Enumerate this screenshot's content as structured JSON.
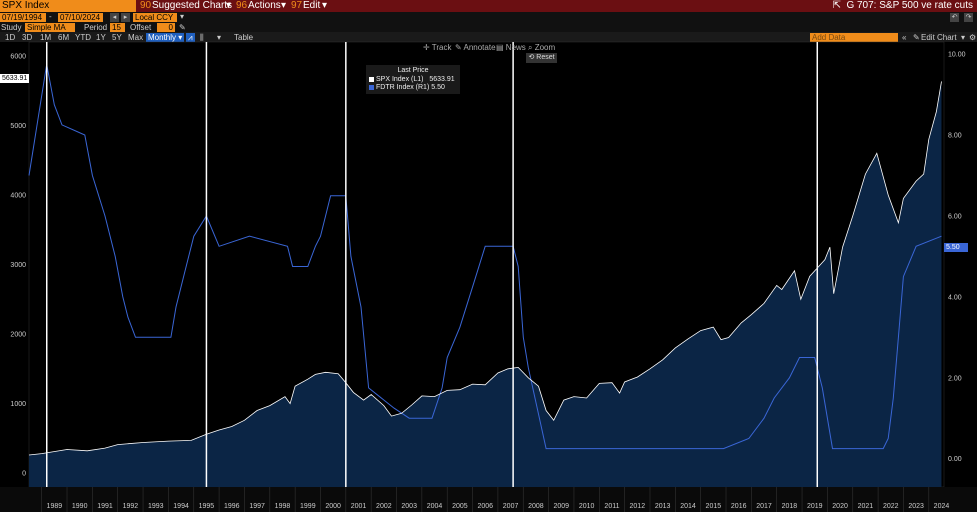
{
  "toolbar": {
    "security": "SPX Index",
    "suggested": "Suggested Charts",
    "suggested_num": "90",
    "actions": "Actions",
    "actions_num": "96",
    "edit": "Edit",
    "edit_num": "97",
    "chart_title": "G 707: S&P 500 ve rate cuts"
  },
  "range": {
    "start": "07/19/1994",
    "end": "07/10/2024",
    "currency": "Local CCY"
  },
  "study": {
    "label": "Study",
    "value": "Simple MA",
    "period_label": "Period",
    "period_value": "15",
    "offset_label": "Offset",
    "offset_value": "0"
  },
  "ranges": [
    "1D",
    "3D",
    "1M",
    "6M",
    "YTD",
    "1Y",
    "5Y",
    "Max"
  ],
  "frequency": "Monthly",
  "table_label": "Table",
  "add_data_placeholder": "Add Data",
  "edit_chart": "Edit Chart",
  "tools": {
    "track": "Track",
    "annotate": "Annotate",
    "news": "News",
    "zoom": "Zoom",
    "reset": "Reset"
  },
  "legend": {
    "header": "Last Price",
    "spx_label": "SPX Index  (L1)",
    "spx_value": "5633.91",
    "fdtr_label": "FDTR Index  (R1)",
    "fdtr_value": "5.50"
  },
  "last_tags": {
    "spx": "5633.91",
    "fdtr": "5.50"
  },
  "colors": {
    "spx_line": "#ffffff",
    "spx_fill": "#0b2545",
    "fdtr_line": "#3a66d6",
    "orange": "#f08c1a",
    "bar": "#6b0f12"
  },
  "chart_data": {
    "type": "area",
    "title": "",
    "x_unit": "year",
    "xlim": [
      1988.5,
      2024.6
    ],
    "ylim_left": [
      -200,
      6200
    ],
    "ylim_right": [
      -0.7,
      10.3
    ],
    "y_ticks_left": [
      0,
      1000,
      2000,
      3000,
      4000,
      5000,
      6000
    ],
    "y_ticks_right": [
      "0.00",
      "2.00",
      "4.00",
      "6.00",
      "8.00",
      "10.00"
    ],
    "x_tick_labels": [
      "1989",
      "1990",
      "1991",
      "1992",
      "1993",
      "1994",
      "1995",
      "1996",
      "1997",
      "1998",
      "1999",
      "2000",
      "2001",
      "2002",
      "2003",
      "2004",
      "2005",
      "2006",
      "2007",
      "2008",
      "2009",
      "2010",
      "2011",
      "2012",
      "2013",
      "2014",
      "2015",
      "2016",
      "2017",
      "2018",
      "2019",
      "2020",
      "2021",
      "2022",
      "2023",
      "2024"
    ],
    "rate_cut_start_lines": [
      1989.2,
      1995.5,
      2001.0,
      2007.6,
      2019.6
    ],
    "series": [
      {
        "name": "SPX Index (L1)",
        "axis": "left",
        "x": [
          1988.5,
          1989.0,
          1990.0,
          1990.8,
          1991.5,
          1992.0,
          1993.0,
          1994.0,
          1994.9,
          1995.5,
          1996.0,
          1996.5,
          1997.0,
          1997.5,
          1998.0,
          1998.6,
          1998.8,
          1999.0,
          1999.5,
          1999.8,
          2000.2,
          2000.7,
          2001.0,
          2001.3,
          2001.7,
          2002.0,
          2002.5,
          2002.8,
          2003.2,
          2003.6,
          2004.0,
          2004.5,
          2005.0,
          2005.5,
          2006.0,
          2006.5,
          2007.0,
          2007.4,
          2007.8,
          2008.2,
          2008.6,
          2008.9,
          2009.2,
          2009.6,
          2010.0,
          2010.5,
          2011.0,
          2011.5,
          2011.8,
          2012.0,
          2012.5,
          2013.0,
          2013.5,
          2014.0,
          2014.5,
          2015.0,
          2015.5,
          2015.8,
          2016.1,
          2016.6,
          2017.0,
          2017.5,
          2018.0,
          2018.2,
          2018.7,
          2018.95,
          2019.3,
          2019.6,
          2019.9,
          2020.1,
          2020.25,
          2020.6,
          2021.0,
          2021.5,
          2021.95,
          2022.4,
          2022.8,
          2023.0,
          2023.5,
          2023.8,
          2024.0,
          2024.3,
          2024.5
        ],
        "y": [
          260,
          280,
          340,
          320,
          360,
          410,
          440,
          460,
          470,
          560,
          620,
          670,
          760,
          900,
          970,
          1100,
          1000,
          1250,
          1350,
          1420,
          1450,
          1430,
          1300,
          1160,
          1050,
          1130,
          970,
          820,
          860,
          980,
          1110,
          1100,
          1190,
          1200,
          1280,
          1270,
          1440,
          1500,
          1520,
          1370,
          1250,
          900,
          760,
          1050,
          1100,
          1080,
          1290,
          1300,
          1150,
          1310,
          1380,
          1500,
          1630,
          1800,
          1930,
          2050,
          2100,
          1920,
          1950,
          2160,
          2280,
          2440,
          2700,
          2640,
          2910,
          2500,
          2830,
          2950,
          3070,
          3250,
          2580,
          3250,
          3700,
          4300,
          4600,
          4000,
          3600,
          3950,
          4200,
          4300,
          4800,
          5200,
          5634
        ]
      },
      {
        "name": "FDTR Index (R1)",
        "axis": "right",
        "x": [
          1988.5,
          1989.2,
          1989.5,
          1989.8,
          1990.7,
          1991.0,
          1991.5,
          1991.9,
          1992.2,
          1992.4,
          1992.7,
          1994.1,
          1994.3,
          1994.6,
          1994.8,
          1995.0,
          1995.5,
          1996.0,
          1997.2,
          1998.7,
          1998.9,
          1999.5,
          1999.8,
          2000.0,
          2000.4,
          2001.0,
          2001.2,
          2001.6,
          2001.9,
          2002.9,
          2003.5,
          2004.4,
          2004.8,
          2005.0,
          2005.5,
          2006.0,
          2006.5,
          2007.6,
          2007.8,
          2008.0,
          2008.2,
          2008.9,
          2015.9,
          2016.9,
          2017.5,
          2017.9,
          2018.5,
          2018.9,
          2019.5,
          2019.8,
          2020.2,
          2022.2,
          2022.4,
          2022.6,
          2022.8,
          2023.0,
          2023.5,
          2024.5
        ],
        "y": [
          7.0,
          9.75,
          8.75,
          8.25,
          8.0,
          7.0,
          6.0,
          5.0,
          4.0,
          3.5,
          3.0,
          3.0,
          3.75,
          4.5,
          5.0,
          5.5,
          6.0,
          5.25,
          5.5,
          5.25,
          4.75,
          4.75,
          5.25,
          5.5,
          6.5,
          6.5,
          5.0,
          3.75,
          1.75,
          1.25,
          1.0,
          1.0,
          1.75,
          2.5,
          3.25,
          4.25,
          5.25,
          5.25,
          4.75,
          3.0,
          2.25,
          0.25,
          0.25,
          0.5,
          1.0,
          1.5,
          2.0,
          2.5,
          2.5,
          1.75,
          0.25,
          0.25,
          0.5,
          1.5,
          3.0,
          4.5,
          5.25,
          5.5
        ]
      }
    ]
  }
}
